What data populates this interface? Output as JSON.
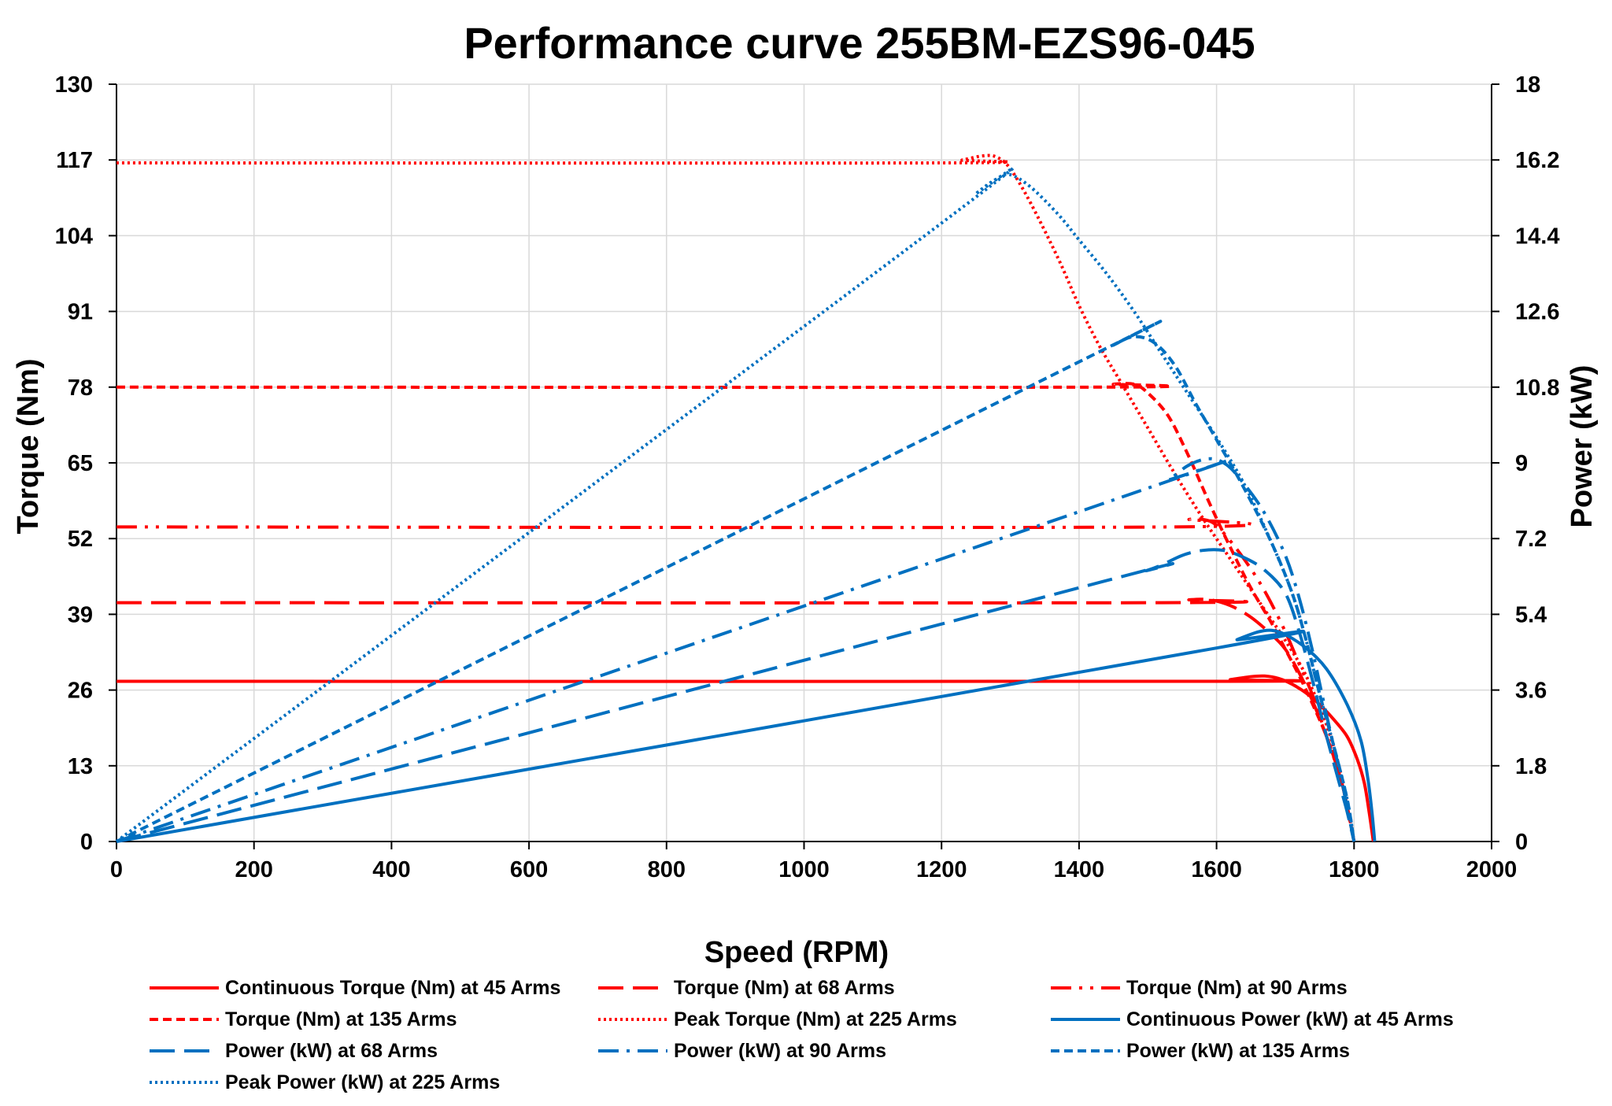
{
  "chart_data": {
    "type": "line",
    "title": "Performance curve 255BM-EZS96-045",
    "xlabel": "Speed (RPM)",
    "ylabel": "Torque (Nm)",
    "y2label": "Power (kW)",
    "xlim": [
      0,
      2000
    ],
    "ylim": [
      0,
      130
    ],
    "y2lim": [
      0,
      18
    ],
    "xticks": [
      "0",
      "200",
      "400",
      "600",
      "800",
      "1000",
      "1200",
      "1400",
      "1600",
      "1800",
      "2000"
    ],
    "yticks": [
      "0",
      "13",
      "26",
      "39",
      "52",
      "65",
      "78",
      "91",
      "104",
      "117",
      "130"
    ],
    "y2ticks": [
      "0",
      "1.8",
      "3.6",
      "5.4",
      "7.2",
      "9",
      "10.8",
      "12.6",
      "14.4",
      "16.2",
      "18"
    ],
    "grid": true,
    "legend_position": "bottom",
    "series": [
      {
        "name": "Continuous Torque (Nm) at 45 Arms",
        "axis": "left",
        "color": "#ff0000",
        "dash": "solid",
        "points": [
          [
            0,
            27.5
          ],
          [
            1600,
            27.5
          ],
          [
            1620,
            27.8
          ],
          [
            1650,
            28.3
          ],
          [
            1670,
            28.4
          ],
          [
            1690,
            28
          ],
          [
            1710,
            27
          ],
          [
            1730,
            25.5
          ],
          [
            1750,
            23.5
          ],
          [
            1770,
            21
          ],
          [
            1790,
            18
          ],
          [
            1805,
            14
          ],
          [
            1815,
            10
          ],
          [
            1822,
            5
          ],
          [
            1828,
            0
          ]
        ]
      },
      {
        "name": "Torque (Nm) at 68 Arms",
        "axis": "left",
        "color": "#ff0000",
        "dash": "longdash",
        "points": [
          [
            0,
            41
          ],
          [
            1520,
            41
          ],
          [
            1560,
            41.5
          ],
          [
            1590,
            41.5
          ],
          [
            1620,
            40.5
          ],
          [
            1650,
            38.5
          ],
          [
            1680,
            35.5
          ],
          [
            1700,
            33
          ],
          [
            1720,
            29
          ],
          [
            1740,
            24
          ],
          [
            1760,
            18
          ],
          [
            1780,
            11
          ],
          [
            1790,
            6
          ],
          [
            1800,
            0
          ]
        ]
      },
      {
        "name": "Torque (Nm) at 90 Arms",
        "axis": "left",
        "color": "#ff0000",
        "dash": "dashdotdot",
        "points": [
          [
            0,
            54
          ],
          [
            1530,
            54
          ],
          [
            1560,
            55.3
          ],
          [
            1590,
            55
          ],
          [
            1610,
            53
          ],
          [
            1640,
            48.5
          ],
          [
            1670,
            43
          ],
          [
            1700,
            36
          ],
          [
            1720,
            30.5
          ],
          [
            1740,
            25
          ],
          [
            1760,
            18
          ],
          [
            1780,
            11
          ],
          [
            1790,
            6
          ],
          [
            1800,
            0
          ]
        ]
      },
      {
        "name": "Torque (Nm) at 135 Arms",
        "axis": "left",
        "color": "#ff0000",
        "dash": "dash",
        "points": [
          [
            0,
            78
          ],
          [
            1420,
            78
          ],
          [
            1450,
            78.5
          ],
          [
            1480,
            78.5
          ],
          [
            1500,
            77
          ],
          [
            1530,
            73
          ],
          [
            1560,
            66
          ],
          [
            1590,
            58
          ],
          [
            1620,
            50.5
          ],
          [
            1650,
            43.5
          ],
          [
            1680,
            37.5
          ],
          [
            1700,
            33
          ],
          [
            1720,
            28.5
          ],
          [
            1740,
            23.5
          ],
          [
            1760,
            18
          ],
          [
            1780,
            11
          ],
          [
            1790,
            6
          ],
          [
            1800,
            0
          ]
        ]
      },
      {
        "name": "Peak Torque (Nm) at 225 Arms",
        "axis": "left",
        "color": "#ff0000",
        "dash": "dot",
        "points": [
          [
            0,
            116.5
          ],
          [
            1200,
            116.5
          ],
          [
            1230,
            117
          ],
          [
            1260,
            117.7
          ],
          [
            1280,
            117.5
          ],
          [
            1300,
            115.5
          ],
          [
            1330,
            109.5
          ],
          [
            1370,
            100
          ],
          [
            1400,
            92
          ],
          [
            1430,
            85
          ],
          [
            1460,
            79
          ],
          [
            1500,
            71
          ],
          [
            1540,
            63
          ],
          [
            1580,
            55.5
          ],
          [
            1620,
            48.5
          ],
          [
            1660,
            41.5
          ],
          [
            1700,
            34.5
          ],
          [
            1730,
            28.5
          ],
          [
            1760,
            20
          ],
          [
            1780,
            12
          ],
          [
            1790,
            6
          ],
          [
            1800,
            0
          ]
        ]
      },
      {
        "name": "Continuous Power (kW) at 45 Arms",
        "axis": "right",
        "color": "#0070c0",
        "dash": "solid",
        "points": [
          [
            0,
            0
          ],
          [
            1600,
            4.6
          ],
          [
            1630,
            4.8
          ],
          [
            1660,
            4.98
          ],
          [
            1680,
            5.02
          ],
          [
            1700,
            4.92
          ],
          [
            1730,
            4.6
          ],
          [
            1760,
            4.1
          ],
          [
            1790,
            3.25
          ],
          [
            1810,
            2.4
          ],
          [
            1820,
            1.5
          ],
          [
            1826,
            0.7
          ],
          [
            1830,
            0
          ]
        ]
      },
      {
        "name": "Power (kW) at 68 Arms",
        "axis": "right",
        "color": "#0070c0",
        "dash": "longdash",
        "points": [
          [
            0,
            0
          ],
          [
            1400,
            6.03
          ],
          [
            1500,
            6.45
          ],
          [
            1550,
            6.8
          ],
          [
            1580,
            6.92
          ],
          [
            1610,
            6.92
          ],
          [
            1640,
            6.75
          ],
          [
            1670,
            6.45
          ],
          [
            1700,
            5.9
          ],
          [
            1720,
            5
          ],
          [
            1740,
            3.8
          ],
          [
            1760,
            2.5
          ],
          [
            1780,
            1.3
          ],
          [
            1790,
            0.7
          ],
          [
            1800,
            0
          ]
        ]
      },
      {
        "name": "Power (kW) at 90 Arms",
        "axis": "right",
        "color": "#0070c0",
        "dash": "dashdot",
        "points": [
          [
            0,
            0
          ],
          [
            1500,
            8.4
          ],
          [
            1530,
            8.6
          ],
          [
            1560,
            8.95
          ],
          [
            1590,
            9.1
          ],
          [
            1615,
            8.95
          ],
          [
            1640,
            8.5
          ],
          [
            1670,
            7.8
          ],
          [
            1700,
            6.8
          ],
          [
            1720,
            5.8
          ],
          [
            1740,
            4.5
          ],
          [
            1760,
            3.0
          ],
          [
            1780,
            1.6
          ],
          [
            1790,
            0.8
          ],
          [
            1800,
            0
          ]
        ]
      },
      {
        "name": "Power (kW) at 135 Arms",
        "axis": "right",
        "color": "#0070c0",
        "dash": "dash",
        "points": [
          [
            0,
            0
          ],
          [
            1400,
            11.4
          ],
          [
            1450,
            11.8
          ],
          [
            1480,
            12.0
          ],
          [
            1510,
            11.85
          ],
          [
            1540,
            11.3
          ],
          [
            1570,
            10.4
          ],
          [
            1600,
            9.55
          ],
          [
            1640,
            8.4
          ],
          [
            1680,
            7.1
          ],
          [
            1710,
            5.9
          ],
          [
            1730,
            4.8
          ],
          [
            1750,
            3.5
          ],
          [
            1770,
            2.3
          ],
          [
            1790,
            1.0
          ],
          [
            1800,
            0
          ]
        ]
      },
      {
        "name": "Peak Power (kW) at 225 Arms",
        "axis": "right",
        "color": "#0070c0",
        "dash": "dot",
        "points": [
          [
            0,
            0
          ],
          [
            1200,
            14.7
          ],
          [
            1250,
            15.4
          ],
          [
            1280,
            15.75
          ],
          [
            1300,
            15.85
          ],
          [
            1330,
            15.55
          ],
          [
            1370,
            14.9
          ],
          [
            1400,
            14.3
          ],
          [
            1440,
            13.5
          ],
          [
            1480,
            12.6
          ],
          [
            1520,
            11.6
          ],
          [
            1560,
            10.6
          ],
          [
            1600,
            9.6
          ],
          [
            1640,
            8.5
          ],
          [
            1680,
            7.1
          ],
          [
            1710,
            5.9
          ],
          [
            1730,
            4.8
          ],
          [
            1750,
            3.5
          ],
          [
            1770,
            2.3
          ],
          [
            1790,
            1.0
          ],
          [
            1800,
            0
          ]
        ]
      }
    ]
  }
}
